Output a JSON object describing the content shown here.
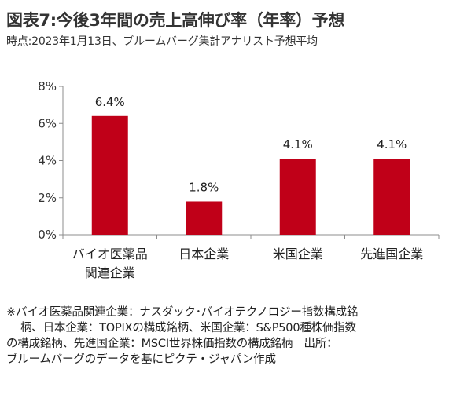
{
  "title": "図表7:今後3年間の売上高伸び率（年率）予想",
  "subtitle": "時点:2023年1月13日、ブルームバーグ集計アナリスト予想平均",
  "chart_data": {
    "type": "bar",
    "categories": [
      [
        "バイオ医薬品",
        "関連企業"
      ],
      [
        "日本企業"
      ],
      [
        "米国企業"
      ],
      [
        "先進国企業"
      ]
    ],
    "values": [
      6.4,
      1.8,
      4.1,
      4.1
    ],
    "value_labels": [
      "6.4%",
      "1.8%",
      "4.1%",
      "4.1%"
    ],
    "ylim": [
      0,
      8
    ],
    "yticks": [
      0,
      2,
      4,
      6,
      8
    ],
    "ytick_labels": [
      "0%",
      "2%",
      "4%",
      "6%",
      "8%"
    ],
    "grid": false,
    "bar_color": "#c00018"
  },
  "note": {
    "lines": [
      "※バイオ医薬品関連企業：ナスダック･バイオテクノロジー指数構成銘",
      "柄、日本企業：TOPIXの構成銘柄、米国企業：S&P500種株価指数",
      "の構成銘柄、先進国企業：MSCI世界株価指数の構成銘柄　出所：",
      "ブルームバーグのデータを基にピクテ・ジャパン作成"
    ]
  }
}
